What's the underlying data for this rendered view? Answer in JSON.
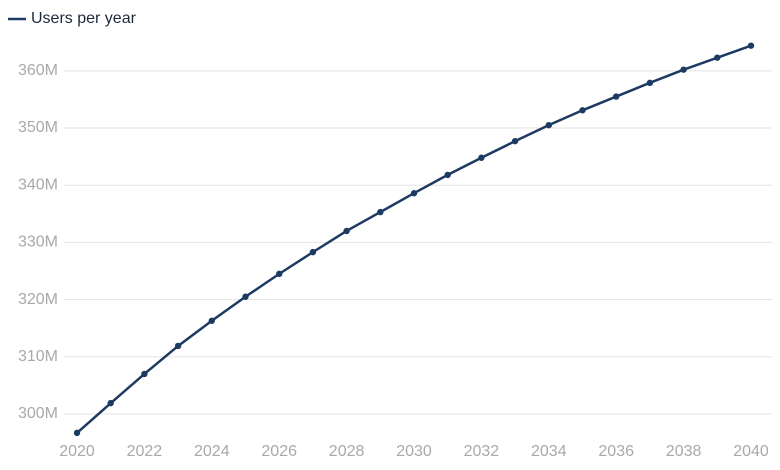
{
  "chart_data": {
    "type": "line",
    "x": [
      2020,
      2021,
      2022,
      2023,
      2024,
      2025,
      2026,
      2027,
      2028,
      2029,
      2030,
      2031,
      2032,
      2033,
      2034,
      2035,
      2036,
      2037,
      2038,
      2039,
      2040
    ],
    "series": [
      {
        "name": "Users per year",
        "color": "#1d3a63",
        "values": [
          296700000,
          301900000,
          307000000,
          311900000,
          316300000,
          320500000,
          324500000,
          328300000,
          332000000,
          335300000,
          338600000,
          341800000,
          344800000,
          347700000,
          350500000,
          353100000,
          355500000,
          357900000,
          360200000,
          362300000,
          364400000
        ]
      }
    ],
    "xlim": [
      2020,
      2040
    ],
    "xticks": [
      2020,
      2022,
      2024,
      2026,
      2028,
      2030,
      2032,
      2034,
      2036,
      2038,
      2040
    ],
    "ylim": [
      295000000,
      366000000
    ],
    "yticks": [
      {
        "value": 300000000,
        "label": "300M"
      },
      {
        "value": 310000000,
        "label": "310M"
      },
      {
        "value": 320000000,
        "label": "320M"
      },
      {
        "value": 330000000,
        "label": "330M"
      },
      {
        "value": 340000000,
        "label": "340M"
      },
      {
        "value": 350000000,
        "label": "350M"
      },
      {
        "value": 360000000,
        "label": "360M"
      }
    ],
    "grid": true,
    "legend": "top-left"
  }
}
